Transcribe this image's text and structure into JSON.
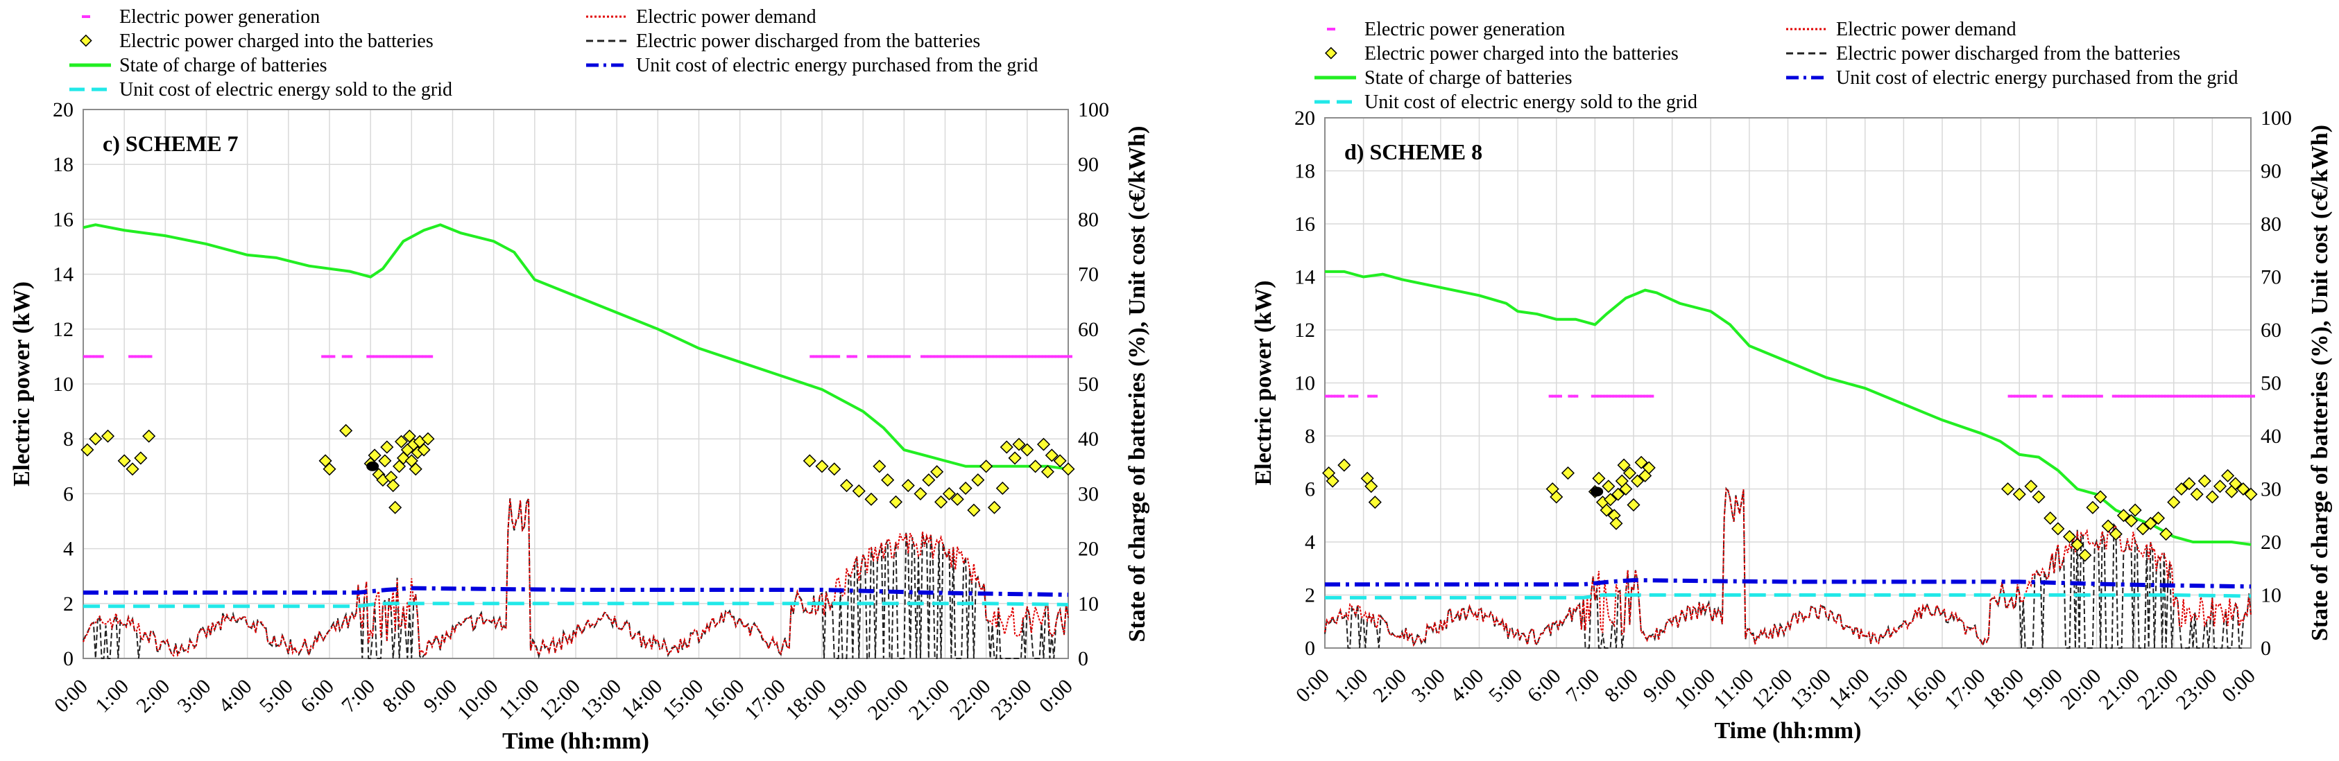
{
  "legend": {
    "generation": "Electric power generation",
    "demand": "Electric power demand",
    "charged": "Electric power charged into the batteries",
    "discharged": "Electric power discharged from the batteries",
    "soc": "State of charge of batteries",
    "cost_buy": "Unit cost of electric energy purchased from the grid",
    "cost_sell": "Unit cost of electric energy sold to the grid"
  },
  "colors": {
    "generation": "#ff33ff",
    "demand": "#e00000",
    "charged_fill": "#ffff33",
    "discharged": "#222222",
    "soc": "#22ee22",
    "cost_buy": "#0000dd",
    "cost_sell": "#22e8e8",
    "grid": "#d9d9d9"
  },
  "chart_data": [
    {
      "type": "line",
      "title": "c) SCHEME 7",
      "xlabel": "Time (hh:mm)",
      "ylabel": "Electric power (kW)",
      "y2label": "State of charge of batteries (%), Unit cost (c€/kWh)",
      "xlim": [
        0,
        24
      ],
      "ylim": [
        0,
        20
      ],
      "y2lim": [
        0,
        100
      ],
      "grid": true,
      "legend_position": "top",
      "x_tick_labels": [
        "0:00",
        "1:00",
        "2:00",
        "3:00",
        "4:00",
        "5:00",
        "6:00",
        "7:00",
        "8:00",
        "9:00",
        "10:00",
        "11:00",
        "12:00",
        "13:00",
        "14:00",
        "15:00",
        "16:00",
        "17:00",
        "18:00",
        "19:00",
        "20:00",
        "21:00",
        "22:00",
        "23:00",
        "0:00"
      ],
      "y_tick_labels": [
        "0",
        "2",
        "4",
        "6",
        "8",
        "10",
        "12",
        "14",
        "16",
        "18",
        "20"
      ],
      "y2_tick_labels": [
        "0",
        "10",
        "20",
        "30",
        "40",
        "50",
        "60",
        "70",
        "80",
        "90",
        "100"
      ],
      "series": [
        {
          "key": "soc",
          "axis": "y2",
          "x": [
            0,
            0.3,
            1,
            2,
            3,
            4,
            4.7,
            5.5,
            6,
            6.5,
            7,
            7.3,
            7.8,
            8.3,
            8.7,
            9.2,
            10,
            10.5,
            11,
            12,
            13,
            14,
            15,
            16,
            17,
            18,
            19,
            19.5,
            20,
            20.5,
            21,
            21.5,
            22,
            22.5,
            23,
            23.5,
            24
          ],
          "values": [
            78.5,
            79,
            78,
            77,
            75.5,
            73.5,
            73,
            71.5,
            71,
            70.5,
            69.5,
            71,
            76,
            78,
            79,
            77.5,
            76,
            74,
            69,
            66,
            63,
            60,
            56.5,
            54,
            51.5,
            49,
            45,
            42,
            38,
            37,
            36,
            35,
            35,
            35,
            35,
            35,
            34.5
          ]
        },
        {
          "key": "cost_buy",
          "axis": "y2",
          "x": [
            0,
            6.7,
            7.4,
            8,
            10.5,
            12,
            18,
            19,
            20.5,
            22,
            24
          ],
          "values": [
            12,
            12,
            12.5,
            12.8,
            12.6,
            12.5,
            12.5,
            12.3,
            12,
            11.8,
            11.6
          ]
        },
        {
          "key": "cost_sell",
          "axis": "y2",
          "x": [
            0,
            6.7,
            7.2,
            12,
            18,
            19,
            22,
            24
          ],
          "values": [
            9.5,
            9.5,
            10,
            10,
            10,
            10,
            10,
            9.8
          ]
        },
        {
          "key": "generation",
          "axis": "y",
          "value": 11.0,
          "x_ranges": [
            [
              0,
              0.4
            ],
            [
              1.1,
              1.6
            ],
            [
              5.8,
              6.1
            ],
            [
              6.3,
              6.5
            ],
            [
              6.9,
              8.5
            ],
            [
              17.7,
              18.4
            ],
            [
              18.6,
              18.8
            ],
            [
              19.1,
              20.1
            ],
            [
              20.4,
              24
            ]
          ]
        },
        {
          "key": "charged",
          "axis": "y",
          "points": [
            [
              0.1,
              7.6
            ],
            [
              0.3,
              8.0
            ],
            [
              0.6,
              8.1
            ],
            [
              1.0,
              7.2
            ],
            [
              1.2,
              6.9
            ],
            [
              1.4,
              7.3
            ],
            [
              1.6,
              8.1
            ],
            [
              5.9,
              7.2
            ],
            [
              6.0,
              6.9
            ],
            [
              6.4,
              8.3
            ],
            [
              7.0,
              7.1
            ],
            [
              7.1,
              7.4
            ],
            [
              7.2,
              6.7
            ],
            [
              7.3,
              6.5
            ],
            [
              7.35,
              7.2
            ],
            [
              7.4,
              7.7
            ],
            [
              7.5,
              6.6
            ],
            [
              7.55,
              6.3
            ],
            [
              7.6,
              5.5
            ],
            [
              7.7,
              7.0
            ],
            [
              7.75,
              7.9
            ],
            [
              7.8,
              7.3
            ],
            [
              7.9,
              7.6
            ],
            [
              7.95,
              8.1
            ],
            [
              8.0,
              7.2
            ],
            [
              8.05,
              7.8
            ],
            [
              8.1,
              6.9
            ],
            [
              8.15,
              7.5
            ],
            [
              8.2,
              7.9
            ],
            [
              8.3,
              7.6
            ],
            [
              8.4,
              8.0
            ],
            [
              17.7,
              7.2
            ],
            [
              18.0,
              7.0
            ],
            [
              18.3,
              6.9
            ],
            [
              18.6,
              6.3
            ],
            [
              18.9,
              6.1
            ],
            [
              19.2,
              5.8
            ],
            [
              19.4,
              7.0
            ],
            [
              19.6,
              6.5
            ],
            [
              19.8,
              5.7
            ],
            [
              20.1,
              6.3
            ],
            [
              20.4,
              6.0
            ],
            [
              20.6,
              6.5
            ],
            [
              20.8,
              6.8
            ],
            [
              20.9,
              5.7
            ],
            [
              21.1,
              6.0
            ],
            [
              21.3,
              5.8
            ],
            [
              21.5,
              6.2
            ],
            [
              21.7,
              5.4
            ],
            [
              21.8,
              6.5
            ],
            [
              22.0,
              7.0
            ],
            [
              22.2,
              5.5
            ],
            [
              22.4,
              6.2
            ],
            [
              22.5,
              7.7
            ],
            [
              22.7,
              7.3
            ],
            [
              22.8,
              7.8
            ],
            [
              23.0,
              7.6
            ],
            [
              23.2,
              7.0
            ],
            [
              23.4,
              7.8
            ],
            [
              23.5,
              6.8
            ],
            [
              23.6,
              7.4
            ],
            [
              23.8,
              7.2
            ],
            [
              24.0,
              6.9
            ]
          ]
        }
      ]
    },
    {
      "type": "line",
      "title": "d) SCHEME 8",
      "xlabel": "Time (hh:mm)",
      "ylabel": "Electric power (kW)",
      "y2label": "State of charge of batteries (%), Unit cost (c€/kWh)",
      "xlim": [
        0,
        24
      ],
      "ylim": [
        0,
        20
      ],
      "y2lim": [
        0,
        100
      ],
      "grid": true,
      "legend_position": "top",
      "x_tick_labels": [
        "0:00",
        "1:00",
        "2:00",
        "3:00",
        "4:00",
        "5:00",
        "6:00",
        "7:00",
        "8:00",
        "9:00",
        "10:00",
        "11:00",
        "12:00",
        "13:00",
        "14:00",
        "15:00",
        "16:00",
        "17:00",
        "18:00",
        "19:00",
        "20:00",
        "21:00",
        "22:00",
        "23:00",
        "0:00"
      ],
      "y_tick_labels": [
        "0",
        "2",
        "4",
        "6",
        "8",
        "10",
        "12",
        "14",
        "16",
        "18",
        "20"
      ],
      "y2_tick_labels": [
        "0",
        "10",
        "20",
        "30",
        "40",
        "50",
        "60",
        "70",
        "80",
        "90",
        "100"
      ],
      "series": [
        {
          "key": "soc",
          "axis": "y2",
          "x": [
            0,
            0.5,
            1,
            1.5,
            2,
            3,
            4,
            4.7,
            5,
            5.5,
            6,
            6.5,
            7,
            7.3,
            7.8,
            8.3,
            8.6,
            9.2,
            10,
            10.5,
            11,
            12,
            13,
            14,
            15,
            16,
            17,
            17.5,
            18,
            18.5,
            19,
            19.5,
            20,
            20.5,
            21,
            21.5,
            22,
            22.5,
            23,
            23.5,
            24
          ],
          "values": [
            71,
            71,
            70,
            70.5,
            69.5,
            68,
            66.5,
            65,
            63.5,
            63,
            62,
            62,
            61,
            63,
            66,
            67.5,
            67,
            65,
            63.5,
            61,
            57,
            54,
            51,
            49,
            46,
            43,
            40.5,
            39,
            36.5,
            36,
            33.5,
            30,
            29,
            26,
            24.5,
            23,
            21,
            20,
            20,
            20,
            19.5
          ]
        },
        {
          "key": "cost_buy",
          "axis": "y2",
          "x": [
            0,
            6.7,
            7.4,
            8,
            10.5,
            12,
            18,
            19,
            20.5,
            22,
            24
          ],
          "values": [
            12,
            12,
            12.5,
            12.8,
            12.6,
            12.5,
            12.5,
            12.3,
            12,
            11.8,
            11.6
          ]
        },
        {
          "key": "cost_sell",
          "axis": "y2",
          "x": [
            0,
            6.7,
            7.2,
            12,
            18,
            19,
            22,
            24
          ],
          "values": [
            9.5,
            9.5,
            10,
            10,
            10,
            10,
            10,
            9.8
          ]
        },
        {
          "key": "generation",
          "axis": "y",
          "value": 9.5,
          "x_ranges": [
            [
              0,
              0.4
            ],
            [
              0.6,
              0.8
            ],
            [
              1.1,
              1.3
            ],
            [
              5.8,
              6.1
            ],
            [
              6.3,
              6.5
            ],
            [
              6.9,
              8.5
            ],
            [
              17.7,
              18.4
            ],
            [
              18.6,
              18.8
            ],
            [
              19.1,
              20.1
            ],
            [
              20.4,
              24
            ]
          ]
        },
        {
          "key": "charged",
          "axis": "y",
          "points": [
            [
              0.1,
              6.6
            ],
            [
              0.2,
              6.3
            ],
            [
              0.5,
              6.9
            ],
            [
              1.1,
              6.4
            ],
            [
              1.2,
              6.1
            ],
            [
              1.3,
              5.5
            ],
            [
              5.9,
              6.0
            ],
            [
              6.0,
              5.7
            ],
            [
              6.3,
              6.6
            ],
            [
              7.0,
              5.9
            ],
            [
              7.1,
              6.4
            ],
            [
              7.2,
              5.5
            ],
            [
              7.3,
              5.2
            ],
            [
              7.35,
              6.1
            ],
            [
              7.4,
              5.6
            ],
            [
              7.5,
              5.0
            ],
            [
              7.55,
              4.7
            ],
            [
              7.6,
              5.8
            ],
            [
              7.7,
              6.3
            ],
            [
              7.75,
              6.9
            ],
            [
              7.8,
              6.0
            ],
            [
              7.9,
              6.6
            ],
            [
              8.0,
              5.4
            ],
            [
              8.1,
              6.3
            ],
            [
              8.2,
              7.0
            ],
            [
              8.3,
              6.5
            ],
            [
              8.4,
              6.8
            ],
            [
              17.7,
              6.0
            ],
            [
              18.0,
              5.8
            ],
            [
              18.3,
              6.1
            ],
            [
              18.5,
              5.7
            ],
            [
              18.8,
              4.9
            ],
            [
              19.0,
              4.5
            ],
            [
              19.3,
              4.2
            ],
            [
              19.5,
              3.9
            ],
            [
              19.7,
              3.5
            ],
            [
              19.9,
              5.3
            ],
            [
              20.1,
              5.7
            ],
            [
              20.3,
              4.6
            ],
            [
              20.5,
              4.3
            ],
            [
              20.7,
              5.0
            ],
            [
              20.9,
              4.8
            ],
            [
              21.0,
              5.2
            ],
            [
              21.2,
              4.5
            ],
            [
              21.4,
              4.7
            ],
            [
              21.6,
              4.9
            ],
            [
              21.8,
              4.3
            ],
            [
              22.0,
              5.5
            ],
            [
              22.2,
              6.0
            ],
            [
              22.4,
              6.2
            ],
            [
              22.6,
              5.8
            ],
            [
              22.8,
              6.3
            ],
            [
              23.0,
              5.7
            ],
            [
              23.2,
              6.1
            ],
            [
              23.4,
              6.5
            ],
            [
              23.5,
              5.9
            ],
            [
              23.6,
              6.2
            ],
            [
              23.8,
              6.0
            ],
            [
              24.0,
              5.8
            ]
          ]
        }
      ]
    }
  ]
}
